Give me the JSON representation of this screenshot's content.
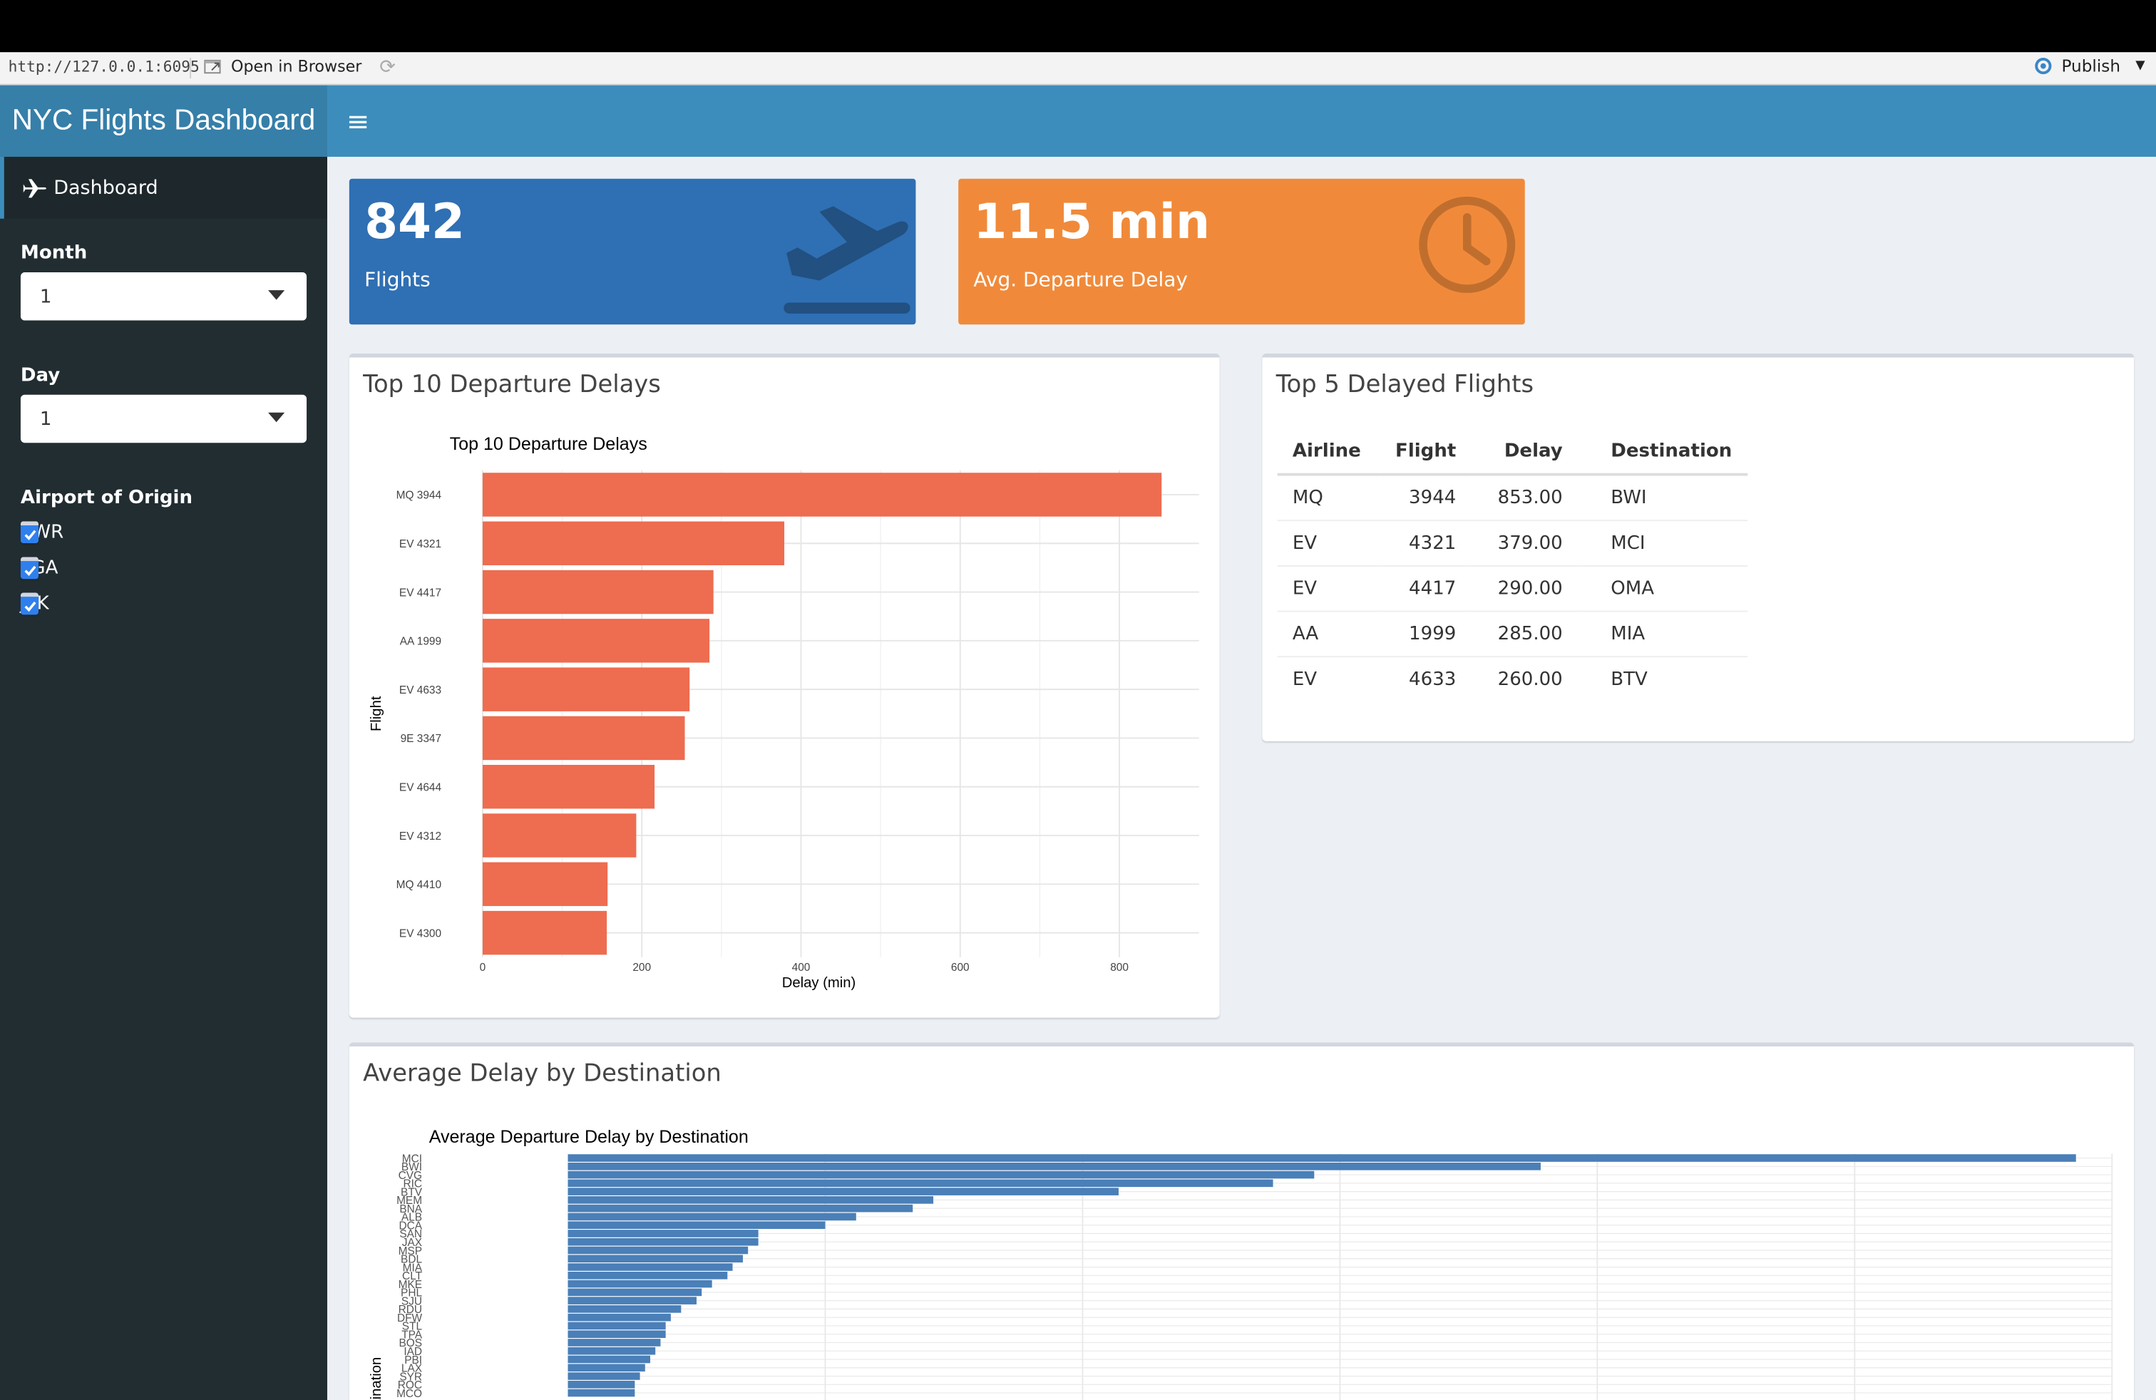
{
  "browser": {
    "url": "http://127.0.0.1:6095",
    "open_in_browser": "Open in Browser",
    "publish": "Publish"
  },
  "header": {
    "title": "NYC Flights Dashboard"
  },
  "sidebar": {
    "menu_item": "Dashboard",
    "month_label": "Month",
    "month_value": "1",
    "day_label": "Day",
    "day_value": "1",
    "origin_label": "Airport of Origin",
    "origins": [
      "EWR",
      "LGA",
      "JFK"
    ]
  },
  "value_boxes": {
    "flights_value": "842",
    "flights_label": "Flights",
    "delay_value": "11.5 min",
    "delay_label": "Avg. Departure Delay",
    "flights_color": "#2f6fb3",
    "delay_color": "#f08a3a"
  },
  "top10_box": {
    "title": "Top 10 Departure Delays"
  },
  "top5_box": {
    "title": "Top 5 Delayed Flights",
    "columns": [
      "Airline",
      "Flight",
      "Delay",
      "Destination"
    ],
    "rows": [
      [
        "MQ",
        "3944",
        "853.00",
        "BWI"
      ],
      [
        "EV",
        "4321",
        "379.00",
        "MCI"
      ],
      [
        "EV",
        "4417",
        "290.00",
        "OMA"
      ],
      [
        "AA",
        "1999",
        "285.00",
        "MIA"
      ],
      [
        "EV",
        "4633",
        "260.00",
        "BTV"
      ]
    ]
  },
  "dest_box": {
    "title": "Average Delay by Destination"
  },
  "chart_data": [
    {
      "type": "bar",
      "orientation": "horizontal",
      "title": "Top 10 Departure Delays",
      "xlabel": "Delay (min)",
      "ylabel": "Flight",
      "categories": [
        "MQ 3944",
        "EV 4321",
        "EV 4417",
        "AA 1999",
        "EV 4633",
        "9E 3347",
        "EV 4644",
        "EV 4312",
        "MQ 4410",
        "EV 4300"
      ],
      "values": [
        853,
        379,
        290,
        285,
        260,
        254,
        216,
        193,
        157,
        156
      ],
      "xlim": [
        0,
        900
      ],
      "xticks": [
        0,
        200,
        400,
        600,
        800
      ],
      "color": "#ee6c50",
      "grid": true
    },
    {
      "type": "bar",
      "orientation": "horizontal",
      "title": "Average Departure Delay by Destination",
      "ylabel": "Destination",
      "categories": [
        "MCI",
        "BWI",
        "CVG",
        "RIC",
        "BTV",
        "MEM",
        "BNA",
        "ALB",
        "DCA",
        "SAN",
        "JAX",
        "MSP",
        "BDL",
        "MIA",
        "CLT",
        "MKE",
        "PHL",
        "SJU",
        "RDU",
        "DFW",
        "STL",
        "TPA",
        "BOS",
        "IAD",
        "PBI",
        "LAX",
        "SYR",
        "ROC",
        "MCO"
      ],
      "values": [
        293,
        189,
        145,
        137,
        107,
        71,
        67,
        56,
        50,
        37,
        37,
        35,
        34,
        32,
        31,
        28,
        26,
        25,
        22,
        20,
        19,
        19,
        18,
        17,
        16,
        15,
        14,
        13,
        13
      ],
      "color": "#4a7fb8",
      "grid": true
    }
  ]
}
